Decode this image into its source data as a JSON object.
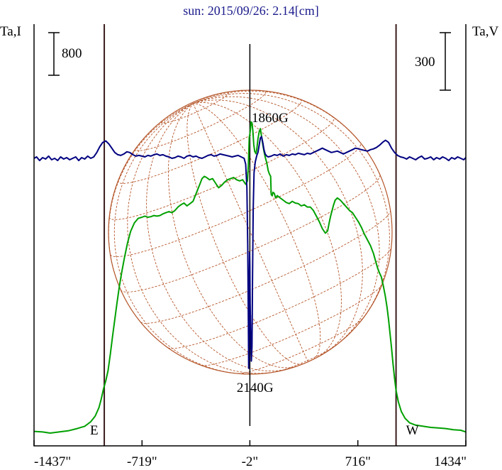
{
  "chart_data": {
    "type": "line",
    "title": "sun: 2015/09/26: 2.14[cm]",
    "left_axis_label": "Ta,I",
    "right_axis_label": "Ta,V",
    "left_scale_bar": "800",
    "right_scale_bar": "300",
    "x_ticks": [
      {
        "value": -1437,
        "label": "-1437\""
      },
      {
        "value": -719,
        "label": "-719\""
      },
      {
        "value": -2,
        "label": "-2\""
      },
      {
        "value": 716,
        "label": "716\""
      },
      {
        "value": 1434,
        "label": "1434\""
      }
    ],
    "xlim": [
      -1437,
      1434
    ],
    "limb_markers": [
      {
        "x": -970,
        "label": "E"
      },
      {
        "x": 970,
        "label": "W"
      }
    ],
    "center_marker_x": -2,
    "annotations": [
      {
        "x": 0,
        "label": "1860G",
        "position": "top"
      },
      {
        "x": -5,
        "label": "2140G",
        "position": "bottom"
      }
    ],
    "grid": false,
    "series": [
      {
        "color": "#00a000",
        "points": [
          [
            -1437,
            3
          ],
          [
            -1380,
            2
          ],
          [
            -1330,
            0
          ],
          [
            -1270,
            2
          ],
          [
            -1210,
            4
          ],
          [
            -1150,
            8
          ],
          [
            -1100,
            12
          ],
          [
            -1060,
            20
          ],
          [
            -1030,
            30
          ],
          [
            -1005,
            45
          ],
          [
            -990,
            60
          ],
          [
            -975,
            78
          ],
          [
            -960,
            92
          ],
          [
            -945,
            110
          ],
          [
            -930,
            138
          ],
          [
            -915,
            170
          ],
          [
            -900,
            200
          ],
          [
            -885,
            230
          ],
          [
            -870,
            258
          ],
          [
            -855,
            282
          ],
          [
            -835,
            310
          ],
          [
            -815,
            335
          ],
          [
            -795,
            355
          ],
          [
            -770,
            370
          ],
          [
            -745,
            378
          ],
          [
            -720,
            380
          ],
          [
            -700,
            382
          ],
          [
            -680,
            380
          ],
          [
            -660,
            381
          ],
          [
            -640,
            383
          ],
          [
            -620,
            382
          ],
          [
            -600,
            383
          ],
          [
            -580,
            386
          ],
          [
            -560,
            388
          ],
          [
            -540,
            390
          ],
          [
            -520,
            388
          ],
          [
            -500,
            392
          ],
          [
            -480,
            398
          ],
          [
            -460,
            402
          ],
          [
            -440,
            405
          ],
          [
            -420,
            400
          ],
          [
            -400,
            404
          ],
          [
            -380,
            408
          ],
          [
            -365,
            418
          ],
          [
            -350,
            428
          ],
          [
            -335,
            438
          ],
          [
            -320,
            448
          ],
          [
            -305,
            452
          ],
          [
            -290,
            450
          ],
          [
            -270,
            446
          ],
          [
            -250,
            448
          ],
          [
            -230,
            440
          ],
          [
            -210,
            432
          ],
          [
            -190,
            436
          ],
          [
            -170,
            442
          ],
          [
            -150,
            446
          ],
          [
            -130,
            448
          ],
          [
            -110,
            450
          ],
          [
            -90,
            446
          ],
          [
            -70,
            444
          ],
          [
            -50,
            446
          ],
          [
            -30,
            438
          ],
          [
            -18,
            444
          ],
          [
            -12,
            472
          ],
          [
            -6,
            520
          ],
          [
            0,
            530
          ],
          [
            6,
            548
          ],
          [
            12,
            546
          ],
          [
            18,
            532
          ],
          [
            24,
            508
          ],
          [
            30,
            496
          ],
          [
            38,
            492
          ],
          [
            44,
            500
          ],
          [
            52,
            518
          ],
          [
            60,
            530
          ],
          [
            68,
            536
          ],
          [
            76,
            522
          ],
          [
            84,
            508
          ],
          [
            92,
            496
          ],
          [
            100,
            486
          ],
          [
            110,
            476
          ],
          [
            120,
            462
          ],
          [
            128,
            456
          ],
          [
            136,
            452
          ],
          [
            140,
            420
          ],
          [
            146,
            418
          ],
          [
            152,
            424
          ],
          [
            160,
            422
          ],
          [
            170,
            414
          ],
          [
            180,
            418
          ],
          [
            200,
            414
          ],
          [
            220,
            410
          ],
          [
            240,
            406
          ],
          [
            260,
            404
          ],
          [
            280,
            408
          ],
          [
            300,
            405
          ],
          [
            320,
            404
          ],
          [
            340,
            400
          ],
          [
            360,
            402
          ],
          [
            380,
            398
          ],
          [
            400,
            398
          ],
          [
            420,
            392
          ],
          [
            440,
            382
          ],
          [
            460,
            372
          ],
          [
            480,
            360
          ],
          [
            500,
            352
          ],
          [
            515,
            356
          ],
          [
            525,
            370
          ],
          [
            535,
            382
          ],
          [
            545,
            392
          ],
          [
            555,
            402
          ],
          [
            565,
            410
          ],
          [
            580,
            414
          ],
          [
            600,
            410
          ],
          [
            620,
            404
          ],
          [
            640,
            398
          ],
          [
            660,
            392
          ],
          [
            680,
            388
          ],
          [
            700,
            380
          ],
          [
            720,
            372
          ],
          [
            740,
            362
          ],
          [
            760,
            350
          ],
          [
            780,
            340
          ],
          [
            800,
            330
          ],
          [
            820,
            316
          ],
          [
            835,
            302
          ],
          [
            848,
            290
          ],
          [
            860,
            282
          ],
          [
            872,
            275
          ],
          [
            885,
            260
          ],
          [
            898,
            242
          ],
          [
            910,
            222
          ],
          [
            920,
            200
          ],
          [
            930,
            175
          ],
          [
            940,
            150
          ],
          [
            950,
            122
          ],
          [
            960,
            96
          ],
          [
            970,
            75
          ],
          [
            985,
            55
          ],
          [
            1005,
            38
          ],
          [
            1030,
            26
          ],
          [
            1060,
            18
          ],
          [
            1100,
            14
          ],
          [
            1150,
            12
          ],
          [
            1200,
            10
          ],
          [
            1250,
            9
          ],
          [
            1300,
            8
          ],
          [
            1350,
            6
          ],
          [
            1400,
            5
          ],
          [
            1434,
            2
          ]
        ]
      },
      {
        "color": "#000080",
        "points": [
          [
            -1437,
            0
          ],
          [
            -1420,
            2
          ],
          [
            -1400,
            -3
          ],
          [
            -1380,
            1
          ],
          [
            -1360,
            -1
          ],
          [
            -1340,
            3
          ],
          [
            -1320,
            -2
          ],
          [
            -1300,
            0
          ],
          [
            -1280,
            -3
          ],
          [
            -1260,
            2
          ],
          [
            -1240,
            -1
          ],
          [
            -1220,
            1
          ],
          [
            -1200,
            -2
          ],
          [
            -1180,
            0
          ],
          [
            -1160,
            2
          ],
          [
            -1140,
            -3
          ],
          [
            -1120,
            1
          ],
          [
            -1100,
            -1
          ],
          [
            -1080,
            3
          ],
          [
            -1060,
            0
          ],
          [
            -1040,
            2
          ],
          [
            -1020,
            8
          ],
          [
            -1000,
            16
          ],
          [
            -980,
            22
          ],
          [
            -960,
            24
          ],
          [
            -940,
            20
          ],
          [
            -920,
            14
          ],
          [
            -900,
            8
          ],
          [
            -880,
            5
          ],
          [
            -860,
            4
          ],
          [
            -840,
            6
          ],
          [
            -820,
            9
          ],
          [
            -800,
            8
          ],
          [
            -780,
            5
          ],
          [
            -760,
            3
          ],
          [
            -740,
            4
          ],
          [
            -720,
            3
          ],
          [
            -700,
            2
          ],
          [
            -680,
            4
          ],
          [
            -660,
            3
          ],
          [
            -640,
            5
          ],
          [
            -620,
            6
          ],
          [
            -600,
            4
          ],
          [
            -580,
            5
          ],
          [
            -560,
            3
          ],
          [
            -540,
            2
          ],
          [
            -520,
            0
          ],
          [
            -500,
            1
          ],
          [
            -480,
            3
          ],
          [
            -460,
            2
          ],
          [
            -440,
            0
          ],
          [
            -420,
            3
          ],
          [
            -400,
            4
          ],
          [
            -380,
            2
          ],
          [
            -360,
            3
          ],
          [
            -340,
            1
          ],
          [
            -320,
            0
          ],
          [
            -300,
            2
          ],
          [
            -280,
            4
          ],
          [
            -260,
            5
          ],
          [
            -240,
            3
          ],
          [
            -220,
            4
          ],
          [
            -200,
            6
          ],
          [
            -180,
            5
          ],
          [
            -160,
            4
          ],
          [
            -140,
            3
          ],
          [
            -120,
            2
          ],
          [
            -100,
            3
          ],
          [
            -80,
            4
          ],
          [
            -60,
            2
          ],
          [
            -40,
            0
          ],
          [
            -30,
            -8
          ],
          [
            -22,
            -40
          ],
          [
            -16,
            -120
          ],
          [
            -12,
            -230
          ],
          [
            -10,
            -290
          ],
          [
            -8,
            -280
          ],
          [
            -6,
            -180
          ],
          [
            -4,
            -130
          ],
          [
            -2,
            -150
          ],
          [
            0,
            -200
          ],
          [
            4,
            -250
          ],
          [
            8,
            -280
          ],
          [
            12,
            -260
          ],
          [
            16,
            -160
          ],
          [
            20,
            -70
          ],
          [
            26,
            -20
          ],
          [
            34,
            -5
          ],
          [
            44,
            4
          ],
          [
            52,
            8
          ],
          [
            60,
            18
          ],
          [
            68,
            28
          ],
          [
            76,
            30
          ],
          [
            84,
            22
          ],
          [
            92,
            12
          ],
          [
            100,
            6
          ],
          [
            110,
            3
          ],
          [
            120,
            2
          ],
          [
            140,
            3
          ],
          [
            160,
            5
          ],
          [
            180,
            4
          ],
          [
            200,
            6
          ],
          [
            220,
            3
          ],
          [
            240,
            5
          ],
          [
            260,
            4
          ],
          [
            280,
            6
          ],
          [
            300,
            5
          ],
          [
            320,
            7
          ],
          [
            340,
            6
          ],
          [
            360,
            5
          ],
          [
            380,
            7
          ],
          [
            400,
            6
          ],
          [
            420,
            8
          ],
          [
            440,
            10
          ],
          [
            460,
            12
          ],
          [
            480,
            14
          ],
          [
            500,
            12
          ],
          [
            520,
            10
          ],
          [
            540,
            8
          ],
          [
            560,
            9
          ],
          [
            580,
            10
          ],
          [
            600,
            8
          ],
          [
            620,
            6
          ],
          [
            640,
            8
          ],
          [
            660,
            10
          ],
          [
            680,
            12
          ],
          [
            700,
            14
          ],
          [
            720,
            13
          ],
          [
            740,
            12
          ],
          [
            760,
            11
          ],
          [
            780,
            10
          ],
          [
            800,
            12
          ],
          [
            820,
            13
          ],
          [
            840,
            15
          ],
          [
            860,
            18
          ],
          [
            880,
            22
          ],
          [
            900,
            25
          ],
          [
            920,
            22
          ],
          [
            940,
            14
          ],
          [
            960,
            8
          ],
          [
            980,
            4
          ],
          [
            1000,
            2
          ],
          [
            1020,
            1
          ],
          [
            1040,
            -1
          ],
          [
            1060,
            2
          ],
          [
            1080,
            0
          ],
          [
            1100,
            -2
          ],
          [
            1120,
            1
          ],
          [
            1140,
            3
          ],
          [
            1160,
            -1
          ],
          [
            1180,
            0
          ],
          [
            1200,
            2
          ],
          [
            1220,
            -2
          ],
          [
            1240,
            1
          ],
          [
            1260,
            -1
          ],
          [
            1280,
            2
          ],
          [
            1300,
            0
          ],
          [
            1320,
            -3
          ],
          [
            1340,
            1
          ],
          [
            1360,
            -1
          ],
          [
            1380,
            2
          ],
          [
            1400,
            0
          ],
          [
            1420,
            -2
          ],
          [
            1434,
            1
          ]
        ]
      }
    ],
    "colors": {
      "disk": "#b5562a",
      "frame": "#000000",
      "limb_lines": "#3a1a1a",
      "title": "#1a1a8c"
    }
  }
}
